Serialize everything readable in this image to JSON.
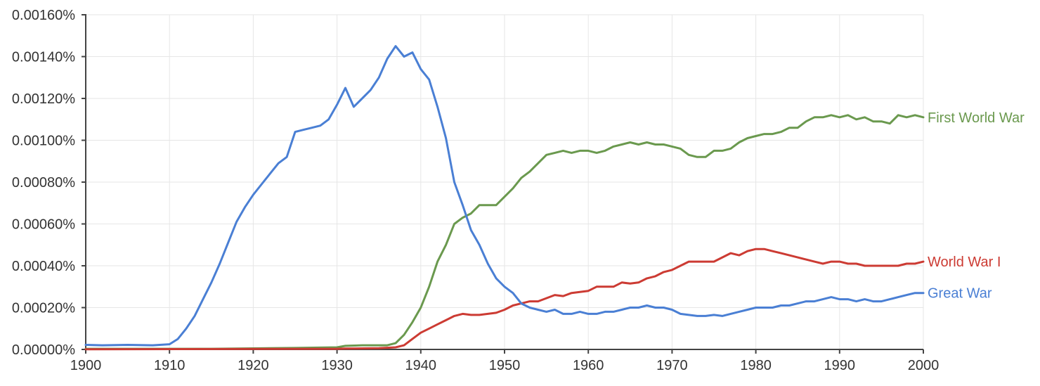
{
  "chart_data": {
    "type": "line",
    "title": "",
    "xlabel": "",
    "ylabel": "",
    "xlim": [
      1900,
      2000
    ],
    "ylim": [
      0,
      0.0016
    ],
    "grid": true,
    "legend": "inline-right",
    "x_ticks": [
      {
        "value": 1900,
        "label": "1900"
      },
      {
        "value": 1910,
        "label": "1910"
      },
      {
        "value": 1920,
        "label": "1920"
      },
      {
        "value": 1930,
        "label": "1930"
      },
      {
        "value": 1940,
        "label": "1940"
      },
      {
        "value": 1950,
        "label": "1950"
      },
      {
        "value": 1960,
        "label": "1960"
      },
      {
        "value": 1970,
        "label": "1970"
      },
      {
        "value": 1980,
        "label": "1980"
      },
      {
        "value": 1990,
        "label": "1990"
      },
      {
        "value": 2000,
        "label": "2000"
      }
    ],
    "y_ticks": [
      {
        "value": 0,
        "label": "0.00000%"
      },
      {
        "value": 0.0002,
        "label": "0.00020%"
      },
      {
        "value": 0.0004,
        "label": "0.00040%"
      },
      {
        "value": 0.0006,
        "label": "0.00060%"
      },
      {
        "value": 0.0008,
        "label": "0.00080%"
      },
      {
        "value": 0.001,
        "label": "0.00100%"
      },
      {
        "value": 0.0012,
        "label": "0.00120%"
      },
      {
        "value": 0.0014,
        "label": "0.00140%"
      },
      {
        "value": 0.0016,
        "label": "0.00160%"
      }
    ],
    "series": [
      {
        "name": "First World War",
        "color": "#6a994e",
        "points": [
          [
            1900,
            3e-06
          ],
          [
            1905,
            3e-06
          ],
          [
            1910,
            3e-06
          ],
          [
            1915,
            3e-06
          ],
          [
            1920,
            5e-06
          ],
          [
            1925,
            7e-06
          ],
          [
            1930,
            1e-05
          ],
          [
            1931,
            1.7e-05
          ],
          [
            1933,
            2e-05
          ],
          [
            1936,
            2e-05
          ],
          [
            1937,
            3e-05
          ],
          [
            1938,
            7e-05
          ],
          [
            1939,
            0.00013
          ],
          [
            1940,
            0.0002
          ],
          [
            1941,
            0.0003
          ],
          [
            1942,
            0.00042
          ],
          [
            1943,
            0.0005
          ],
          [
            1944,
            0.0006
          ],
          [
            1945,
            0.00063
          ],
          [
            1946,
            0.00065
          ],
          [
            1947,
            0.00069
          ],
          [
            1948,
            0.00069
          ],
          [
            1949,
            0.00069
          ],
          [
            1950,
            0.00073
          ],
          [
            1951,
            0.00077
          ],
          [
            1952,
            0.00082
          ],
          [
            1953,
            0.00085
          ],
          [
            1954,
            0.00089
          ],
          [
            1955,
            0.00093
          ],
          [
            1956,
            0.00094
          ],
          [
            1957,
            0.00095
          ],
          [
            1958,
            0.00094
          ],
          [
            1959,
            0.00095
          ],
          [
            1960,
            0.00095
          ],
          [
            1961,
            0.00094
          ],
          [
            1962,
            0.00095
          ],
          [
            1963,
            0.00097
          ],
          [
            1964,
            0.00098
          ],
          [
            1965,
            0.00099
          ],
          [
            1966,
            0.00098
          ],
          [
            1967,
            0.00099
          ],
          [
            1968,
            0.00098
          ],
          [
            1969,
            0.00098
          ],
          [
            1970,
            0.00097
          ],
          [
            1971,
            0.00096
          ],
          [
            1972,
            0.00093
          ],
          [
            1973,
            0.00092
          ],
          [
            1974,
            0.00092
          ],
          [
            1975,
            0.00095
          ],
          [
            1976,
            0.00095
          ],
          [
            1977,
            0.00096
          ],
          [
            1978,
            0.00099
          ],
          [
            1979,
            0.00101
          ],
          [
            1980,
            0.00102
          ],
          [
            1981,
            0.00103
          ],
          [
            1982,
            0.00103
          ],
          [
            1983,
            0.00104
          ],
          [
            1984,
            0.00106
          ],
          [
            1985,
            0.00106
          ],
          [
            1986,
            0.00109
          ],
          [
            1987,
            0.00111
          ],
          [
            1988,
            0.00111
          ],
          [
            1989,
            0.00112
          ],
          [
            1990,
            0.00111
          ],
          [
            1991,
            0.00112
          ],
          [
            1992,
            0.0011
          ],
          [
            1993,
            0.00111
          ],
          [
            1994,
            0.00109
          ],
          [
            1995,
            0.00109
          ],
          [
            1996,
            0.00108
          ],
          [
            1997,
            0.00112
          ],
          [
            1998,
            0.00111
          ],
          [
            1999,
            0.00112
          ],
          [
            2000,
            0.00111
          ]
        ]
      },
      {
        "name": "World War I",
        "color": "#cc3b33",
        "points": [
          [
            1900,
            1e-06
          ],
          [
            1930,
            3e-06
          ],
          [
            1931,
            4e-06
          ],
          [
            1935,
            6e-06
          ],
          [
            1937,
            1e-05
          ],
          [
            1938,
            2e-05
          ],
          [
            1939,
            5e-05
          ],
          [
            1940,
            8e-05
          ],
          [
            1941,
            0.0001
          ],
          [
            1942,
            0.00012
          ],
          [
            1943,
            0.00014
          ],
          [
            1944,
            0.00016
          ],
          [
            1945,
            0.00017
          ],
          [
            1946,
            0.000165
          ],
          [
            1947,
            0.000165
          ],
          [
            1948,
            0.00017
          ],
          [
            1949,
            0.000175
          ],
          [
            1950,
            0.00019
          ],
          [
            1951,
            0.00021
          ],
          [
            1952,
            0.00022
          ],
          [
            1953,
            0.00023
          ],
          [
            1954,
            0.00023
          ],
          [
            1955,
            0.000245
          ],
          [
            1956,
            0.00026
          ],
          [
            1957,
            0.000255
          ],
          [
            1958,
            0.00027
          ],
          [
            1959,
            0.000275
          ],
          [
            1960,
            0.00028
          ],
          [
            1961,
            0.0003
          ],
          [
            1962,
            0.0003
          ],
          [
            1963,
            0.0003
          ],
          [
            1964,
            0.00032
          ],
          [
            1965,
            0.000315
          ],
          [
            1966,
            0.00032
          ],
          [
            1967,
            0.00034
          ],
          [
            1968,
            0.00035
          ],
          [
            1969,
            0.00037
          ],
          [
            1970,
            0.00038
          ],
          [
            1971,
            0.0004
          ],
          [
            1972,
            0.00042
          ],
          [
            1973,
            0.00042
          ],
          [
            1974,
            0.00042
          ],
          [
            1975,
            0.00042
          ],
          [
            1976,
            0.00044
          ],
          [
            1977,
            0.00046
          ],
          [
            1978,
            0.00045
          ],
          [
            1979,
            0.00047
          ],
          [
            1980,
            0.00048
          ],
          [
            1981,
            0.00048
          ],
          [
            1982,
            0.00047
          ],
          [
            1983,
            0.00046
          ],
          [
            1984,
            0.00045
          ],
          [
            1985,
            0.00044
          ],
          [
            1986,
            0.00043
          ],
          [
            1987,
            0.00042
          ],
          [
            1988,
            0.00041
          ],
          [
            1989,
            0.00042
          ],
          [
            1990,
            0.00042
          ],
          [
            1991,
            0.00041
          ],
          [
            1992,
            0.00041
          ],
          [
            1993,
            0.0004
          ],
          [
            1994,
            0.0004
          ],
          [
            1995,
            0.0004
          ],
          [
            1996,
            0.0004
          ],
          [
            1997,
            0.0004
          ],
          [
            1998,
            0.00041
          ],
          [
            1999,
            0.00041
          ],
          [
            2000,
            0.00042
          ]
        ]
      },
      {
        "name": "Great War",
        "color": "#4a7fd4",
        "points": [
          [
            1900,
            2.2e-05
          ],
          [
            1902,
            2e-05
          ],
          [
            1905,
            2.2e-05
          ],
          [
            1908,
            2e-05
          ],
          [
            1910,
            2.5e-05
          ],
          [
            1911,
            5e-05
          ],
          [
            1912,
            0.0001
          ],
          [
            1913,
            0.00016
          ],
          [
            1914,
            0.00024
          ],
          [
            1915,
            0.00032
          ],
          [
            1916,
            0.00041
          ],
          [
            1917,
            0.00051
          ],
          [
            1918,
            0.00061
          ],
          [
            1919,
            0.00068
          ],
          [
            1920,
            0.00074
          ],
          [
            1921,
            0.00079
          ],
          [
            1922,
            0.00084
          ],
          [
            1923,
            0.00089
          ],
          [
            1924,
            0.00092
          ],
          [
            1925,
            0.00104
          ],
          [
            1926,
            0.00105
          ],
          [
            1927,
            0.00106
          ],
          [
            1928,
            0.00107
          ],
          [
            1929,
            0.0011
          ],
          [
            1930,
            0.00117
          ],
          [
            1931,
            0.00125
          ],
          [
            1932,
            0.00116
          ],
          [
            1933,
            0.0012
          ],
          [
            1934,
            0.00124
          ],
          [
            1935,
            0.0013
          ],
          [
            1936,
            0.00139
          ],
          [
            1937,
            0.00145
          ],
          [
            1938,
            0.0014
          ],
          [
            1939,
            0.00142
          ],
          [
            1940,
            0.00134
          ],
          [
            1941,
            0.00129
          ],
          [
            1942,
            0.00116
          ],
          [
            1943,
            0.00101
          ],
          [
            1944,
            0.0008
          ],
          [
            1945,
            0.00069
          ],
          [
            1946,
            0.00057
          ],
          [
            1947,
            0.0005
          ],
          [
            1948,
            0.00041
          ],
          [
            1949,
            0.00034
          ],
          [
            1950,
            0.0003
          ],
          [
            1951,
            0.00027
          ],
          [
            1952,
            0.00022
          ],
          [
            1953,
            0.0002
          ],
          [
            1954,
            0.00019
          ],
          [
            1955,
            0.00018
          ],
          [
            1956,
            0.00019
          ],
          [
            1957,
            0.00017
          ],
          [
            1958,
            0.00017
          ],
          [
            1959,
            0.00018
          ],
          [
            1960,
            0.00017
          ],
          [
            1961,
            0.00017
          ],
          [
            1962,
            0.00018
          ],
          [
            1963,
            0.00018
          ],
          [
            1964,
            0.00019
          ],
          [
            1965,
            0.0002
          ],
          [
            1966,
            0.0002
          ],
          [
            1967,
            0.00021
          ],
          [
            1968,
            0.0002
          ],
          [
            1969,
            0.0002
          ],
          [
            1970,
            0.00019
          ],
          [
            1971,
            0.00017
          ],
          [
            1972,
            0.000165
          ],
          [
            1973,
            0.00016
          ],
          [
            1974,
            0.00016
          ],
          [
            1975,
            0.000165
          ],
          [
            1976,
            0.00016
          ],
          [
            1977,
            0.00017
          ],
          [
            1978,
            0.00018
          ],
          [
            1979,
            0.00019
          ],
          [
            1980,
            0.0002
          ],
          [
            1981,
            0.0002
          ],
          [
            1982,
            0.0002
          ],
          [
            1983,
            0.00021
          ],
          [
            1984,
            0.00021
          ],
          [
            1985,
            0.00022
          ],
          [
            1986,
            0.00023
          ],
          [
            1987,
            0.00023
          ],
          [
            1988,
            0.00024
          ],
          [
            1989,
            0.00025
          ],
          [
            1990,
            0.00024
          ],
          [
            1991,
            0.00024
          ],
          [
            1992,
            0.00023
          ],
          [
            1993,
            0.00024
          ],
          [
            1994,
            0.00023
          ],
          [
            1995,
            0.00023
          ],
          [
            1996,
            0.00024
          ],
          [
            1997,
            0.00025
          ],
          [
            1998,
            0.00026
          ],
          [
            1999,
            0.00027
          ],
          [
            2000,
            0.00027
          ]
        ]
      }
    ]
  }
}
